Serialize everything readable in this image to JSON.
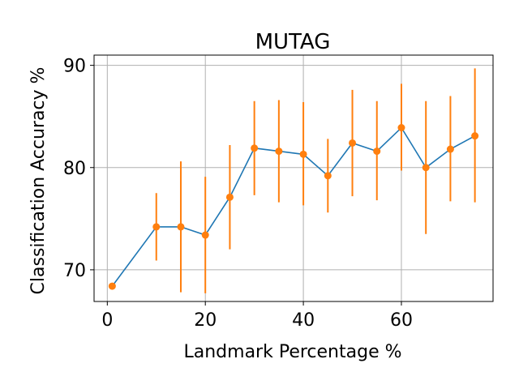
{
  "chart_data": {
    "type": "line",
    "title": "MUTAG",
    "xlabel": "Landmark Percentage %",
    "ylabel": "Classification Accuracy %",
    "xlim": [
      -2.7,
      78.7
    ],
    "ylim": [
      66.9,
      91.0
    ],
    "xticks": [
      0,
      20,
      40,
      60
    ],
    "yticks": [
      70,
      80,
      90
    ],
    "grid": true,
    "colors": {
      "line": "#1f77b4",
      "points": "#ff7f0e",
      "errorbars": "#ff7f0e",
      "grid": "#b0b0b0"
    },
    "series": [
      {
        "x": [
          1,
          10,
          15,
          20,
          25,
          30,
          35,
          40,
          45,
          50,
          55,
          60,
          65,
          70,
          75
        ],
        "values": [
          68.4,
          74.2,
          74.2,
          73.4,
          77.1,
          81.9,
          81.6,
          81.3,
          79.2,
          82.4,
          81.6,
          83.9,
          80.0,
          81.8,
          83.1
        ],
        "err_low": [
          68.4,
          70.9,
          67.8,
          67.7,
          72.0,
          77.3,
          76.6,
          76.3,
          75.6,
          77.2,
          76.8,
          79.7,
          73.5,
          76.7,
          76.6
        ],
        "err_high": [
          68.4,
          77.5,
          80.6,
          79.1,
          82.2,
          86.5,
          86.6,
          86.4,
          82.8,
          87.6,
          86.5,
          88.2,
          86.5,
          87.0,
          89.7
        ]
      }
    ]
  }
}
